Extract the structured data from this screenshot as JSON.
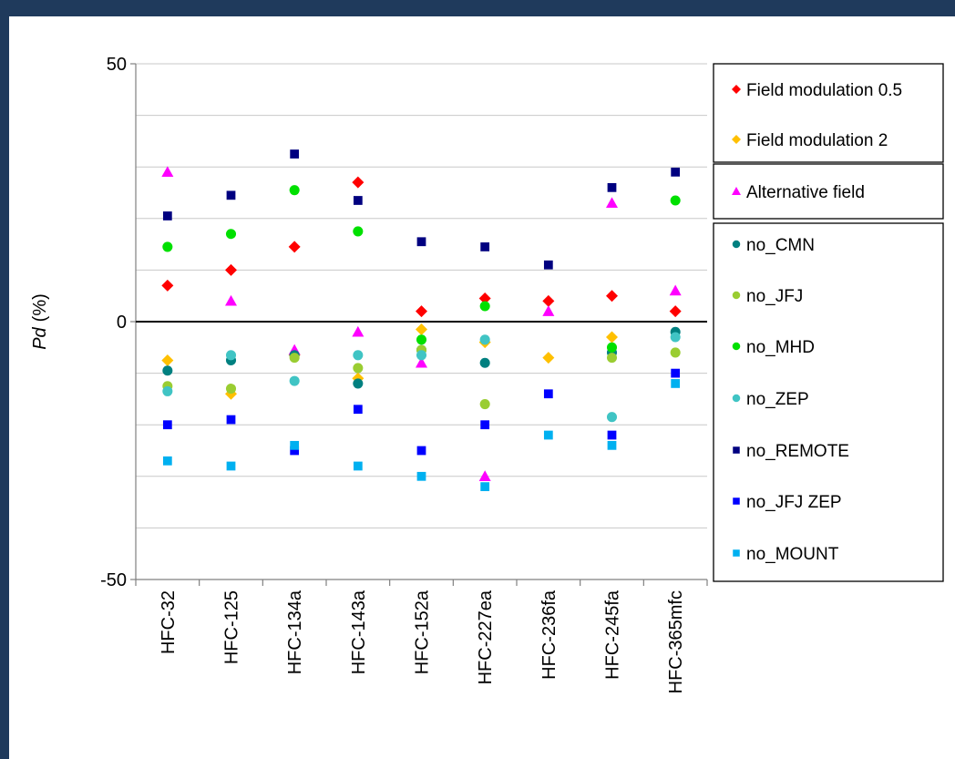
{
  "chart_data": {
    "type": "scatter",
    "title": "",
    "xlabel": "",
    "ylabel": "Pd (%)",
    "ylabel_italic": "Pd",
    "ylabel_unit": "(%)",
    "ylim": [
      -50,
      50
    ],
    "y_ticks": [
      50,
      0,
      -50
    ],
    "grid": "horizontal-every-10",
    "legend_position": "right",
    "categories": [
      "HFC-32",
      "HFC-125",
      "HFC-134a",
      "HFC-143a",
      "HFC-152a",
      "HFC-227ea",
      "HFC-236fa",
      "HFC-245fa",
      "HFC-365mfc"
    ],
    "legend_groups": [
      [
        "Field modulation 0.5",
        "Field modulation 2"
      ],
      [
        "Alternative field"
      ],
      [
        "no_CMN",
        "no_JFJ",
        "no_MHD",
        "no_ZEP",
        "no_REMOTE",
        "no_JFJ ZEP",
        "no_MOUNT"
      ]
    ],
    "series": [
      {
        "name": "Field modulation 0.5",
        "marker": "diamond",
        "color": "#ff0000",
        "values": [
          7,
          10,
          14.5,
          27,
          2,
          4.5,
          4,
          5,
          2
        ]
      },
      {
        "name": "Field modulation 2",
        "marker": "diamond",
        "color": "#ffc000",
        "values": [
          -7.5,
          -14,
          -6.5,
          -11,
          -1.5,
          -4,
          -7,
          -3,
          null
        ]
      },
      {
        "name": "Alternative field",
        "marker": "triangle",
        "color": "#ff00ff",
        "values": [
          29,
          4,
          -5.5,
          -2,
          -8,
          -30,
          2,
          23,
          6
        ]
      },
      {
        "name": "no_CMN",
        "marker": "circle",
        "color": "#008080",
        "values": [
          -9.5,
          -7.5,
          -6.5,
          -12,
          -5.5,
          -8,
          null,
          -6,
          -2
        ]
      },
      {
        "name": "no_JFJ",
        "marker": "circle",
        "color": "#9acd32",
        "values": [
          -12.5,
          -13,
          -7,
          -9,
          -5.5,
          -16,
          null,
          -7,
          -6
        ]
      },
      {
        "name": "no_MHD",
        "marker": "circle",
        "color": "#00e000",
        "values": [
          14.5,
          17,
          25.5,
          17.5,
          -3.5,
          3,
          null,
          -5,
          23.5
        ]
      },
      {
        "name": "no_ZEP",
        "marker": "circle",
        "color": "#40c4c4",
        "values": [
          -13.5,
          -6.5,
          -11.5,
          -6.5,
          -6.5,
          -3.5,
          null,
          -18.5,
          -3
        ]
      },
      {
        "name": "no_REMOTE",
        "marker": "square",
        "color": "#000080",
        "values": [
          20.5,
          24.5,
          32.5,
          23.5,
          15.5,
          14.5,
          11,
          26,
          29
        ]
      },
      {
        "name": "no_JFJ ZEP",
        "marker": "square",
        "color": "#0000ff",
        "values": [
          -20,
          -19,
          -25,
          -17,
          -25,
          -20,
          -14,
          -22,
          -10
        ]
      },
      {
        "name": "no_MOUNT",
        "marker": "square",
        "color": "#00b0f0",
        "values": [
          -27,
          -28,
          -24,
          -28,
          -30,
          -32,
          -22,
          -24,
          -12
        ]
      }
    ]
  }
}
